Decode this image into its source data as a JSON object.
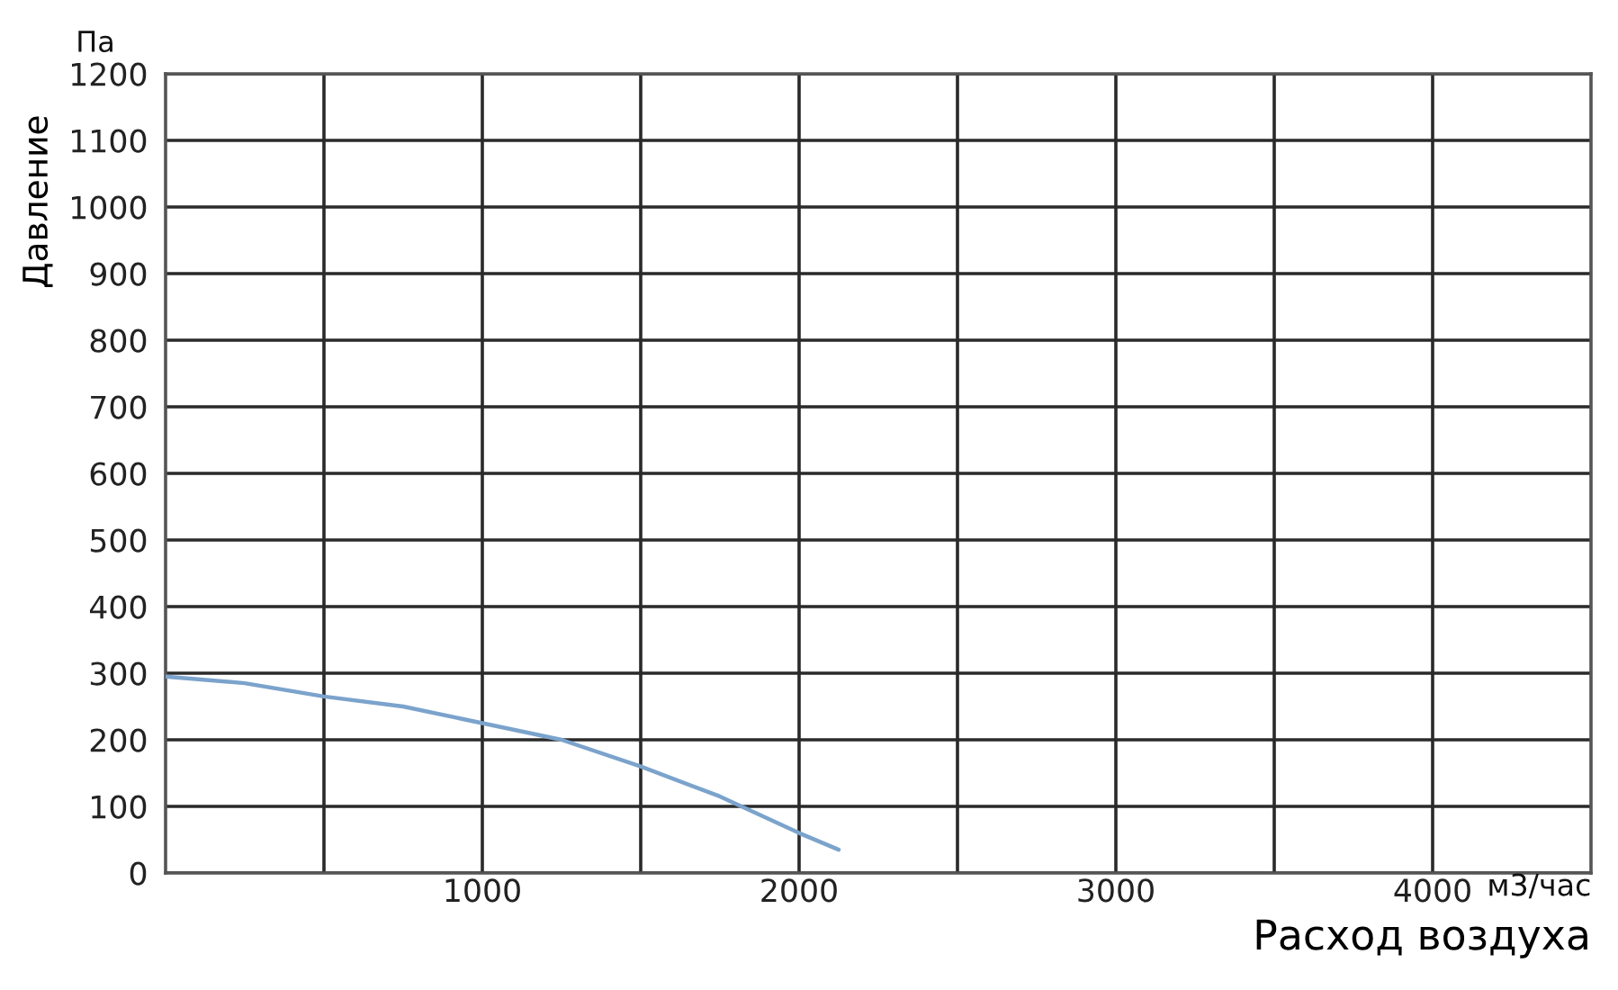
{
  "chart_data": {
    "type": "line",
    "xlabel": "Расход воздуха",
    "ylabel": "Давление",
    "annotations": [
      "Па",
      "м3/час"
    ],
    "x": [
      0,
      250,
      500,
      750,
      1000,
      1250,
      1500,
      1750,
      2000,
      2125
    ],
    "series": [
      {
        "color": "#7ba3cc",
        "values": [
          295,
          285,
          265,
          250,
          225,
          200,
          160,
          115,
          60,
          35
        ]
      }
    ],
    "xlim": [
      0,
      4500
    ],
    "ylim": [
      0,
      1200
    ],
    "xticks": [
      {
        "value": 500,
        "label": null
      },
      1000,
      {
        "value": 1500,
        "label": null
      },
      2000,
      {
        "value": 2500,
        "label": null
      },
      3000,
      {
        "value": 3500,
        "label": null
      },
      4000
    ],
    "yticks": [
      0,
      100,
      200,
      300,
      400,
      500,
      600,
      700,
      800,
      900,
      1000,
      1100,
      1200
    ],
    "grid": true,
    "marker": "none",
    "line_style": "solid"
  }
}
